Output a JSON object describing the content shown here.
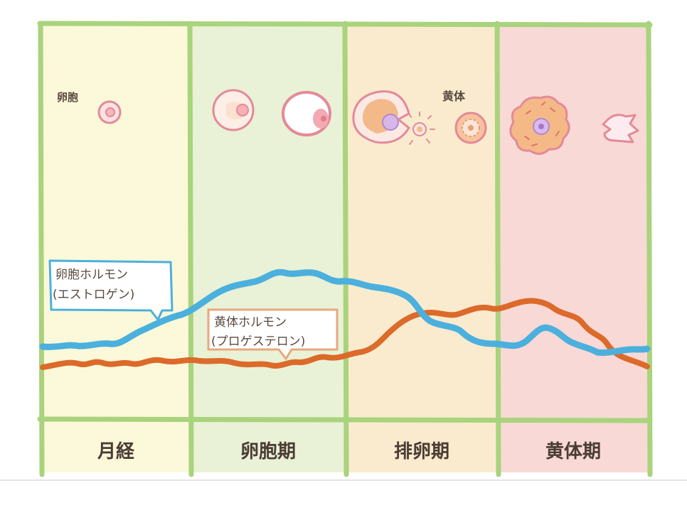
{
  "phases": [
    {
      "key": "menstruation",
      "label": "月経",
      "color": "#fbf9d9"
    },
    {
      "key": "follicular",
      "label": "卵胞期",
      "color": "#e9f1d6"
    },
    {
      "key": "ovulation",
      "label": "排卵期",
      "color": "#faebcf"
    },
    {
      "key": "luteal",
      "label": "黄体期",
      "color": "#f8d9d5"
    }
  ],
  "annotations": {
    "follicle": "卵胞",
    "corpus_luteum": "黄体"
  },
  "hormones": {
    "estrogen": {
      "label_line1": "卵胞ホルモン",
      "label_line2": "(エストロゲン)",
      "color": "#4bb0dd"
    },
    "progesterone": {
      "label_line1": "黄体ホルモン",
      "label_line2": "(プロゲステロン)",
      "color": "#dc6a2a"
    }
  },
  "colors": {
    "border": "#a9d37c",
    "follicle_stroke": "#e48a97",
    "egg": "#c9a3e0",
    "luteum_fill": "#f3b989"
  }
}
